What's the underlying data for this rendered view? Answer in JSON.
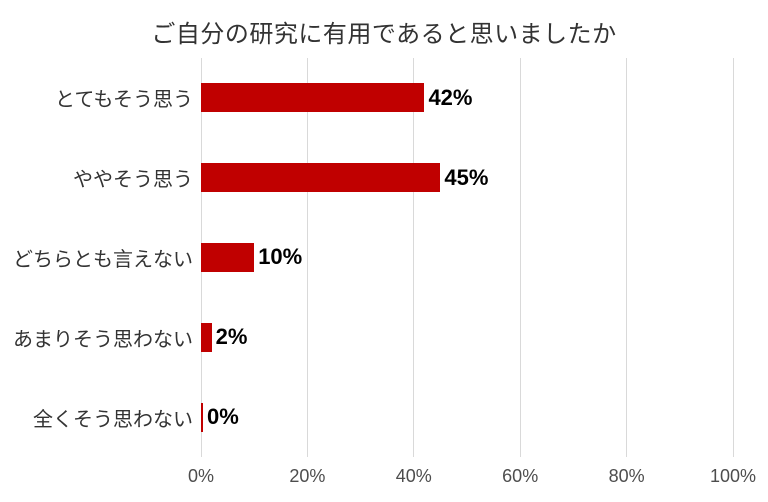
{
  "chart_data": {
    "type": "bar",
    "orientation": "horizontal",
    "title": "ご自分の研究に有用であると思いましたか",
    "categories": [
      "とてもそう思う",
      "ややそう思う",
      "どちらとも言えない",
      "あまりそう思わない",
      "全くそう思わない"
    ],
    "values": [
      42,
      45,
      10,
      2,
      0
    ],
    "value_labels": [
      "42%",
      "45%",
      "10%",
      "2%",
      "0%"
    ],
    "x_ticks": [
      "0%",
      "20%",
      "40%",
      "60%",
      "80%",
      "100%"
    ],
    "x_tick_values": [
      0,
      20,
      40,
      60,
      80,
      100
    ],
    "xlim": [
      0,
      100
    ],
    "xlabel": "",
    "ylabel": "",
    "grid": "vertical-gridlines-on",
    "legend": "none",
    "bar_color": "#c00000",
    "gridline_color": "#d9d9d9",
    "title_color": "#333333",
    "label_color": "#333333",
    "tick_color": "#4d4d4d",
    "data_label_color": "#000000"
  }
}
